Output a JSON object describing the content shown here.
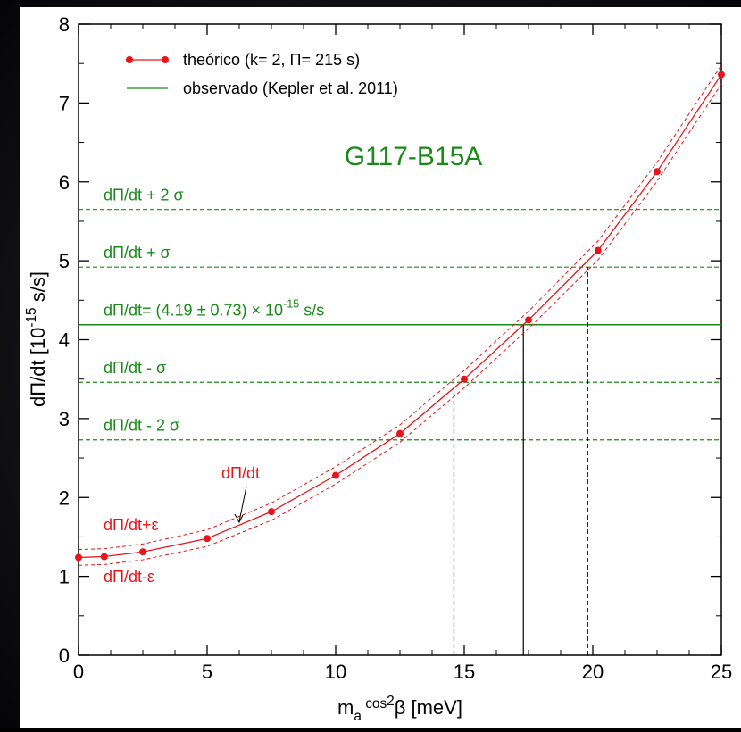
{
  "chart_data": {
    "type": "line",
    "annotation_title": "G117-B15A",
    "xlabel_parts": [
      "m",
      "a",
      " cos",
      "2",
      "β [meV]"
    ],
    "ylabel_parts": [
      "dΠ/dt  [10",
      "-15",
      " s/s]"
    ],
    "xlim": [
      0,
      25
    ],
    "ylim": [
      0,
      8
    ],
    "xticks": [
      0,
      5,
      10,
      15,
      20,
      25
    ],
    "yticks": [
      0,
      1,
      2,
      3,
      4,
      5,
      6,
      7,
      8
    ],
    "xminorticks": [
      1.25,
      2.5,
      3.75,
      6.25,
      7.5,
      8.75,
      11.25,
      12.5,
      13.75,
      16.25,
      17.5,
      18.75,
      21.25,
      22.5,
      23.75
    ],
    "yminorticks": [
      0.5,
      1.5,
      2.5,
      3.5,
      4.5,
      5.5,
      6.5,
      7.5
    ],
    "series": [
      {
        "name": "theórico (k= 2, Π= 215 s)",
        "color": "#e8141b",
        "x": [
          0,
          1,
          2.5,
          5,
          7.5,
          10,
          12.5,
          15,
          17.5,
          20.2,
          22.5,
          25
        ],
        "values": [
          1.24,
          1.25,
          1.31,
          1.48,
          1.82,
          2.28,
          2.81,
          3.5,
          4.25,
          5.13,
          6.13,
          7.36
        ]
      }
    ],
    "bands": [
      {
        "label": "dΠ/dt+ε",
        "color": "#e8141b",
        "values": [
          1.34,
          1.35,
          1.41,
          1.59,
          1.93,
          2.39,
          2.92,
          3.61,
          4.36,
          5.25,
          6.25,
          7.48
        ]
      },
      {
        "label": "dΠ/dt-ε",
        "color": "#e8141b",
        "values": [
          1.14,
          1.15,
          1.21,
          1.38,
          1.71,
          2.17,
          2.7,
          3.39,
          4.14,
          5.01,
          6.01,
          7.24
        ]
      }
    ],
    "curve_label": "dΠ/dt",
    "observed": {
      "name": "observado (Kepler et al. 2011)",
      "color": "#1a8a1a",
      "lines": [
        {
          "value": 5.65,
          "label_parts": [
            "dΠ/dt + 2 σ"
          ],
          "style": "dashed"
        },
        {
          "value": 4.92,
          "label_parts": [
            "dΠ/dt + σ"
          ],
          "style": "dashed"
        },
        {
          "value": 4.19,
          "label_parts": [
            "dΠ/dt= (4.19 ± 0.73) × 10",
            "-15",
            " s/s"
          ],
          "style": "solid"
        },
        {
          "value": 3.46,
          "label_parts": [
            "dΠ/dt - σ"
          ],
          "style": "dashed"
        },
        {
          "value": 2.73,
          "label_parts": [
            "dΠ/dt - 2 σ"
          ],
          "style": "dashed"
        }
      ]
    },
    "vlines": [
      {
        "x": 14.6,
        "top": 3.46,
        "style": "dashed"
      },
      {
        "x": 17.3,
        "top": 4.19,
        "style": "solid"
      },
      {
        "x": 19.8,
        "top": 4.92,
        "style": "dashed"
      }
    ]
  }
}
